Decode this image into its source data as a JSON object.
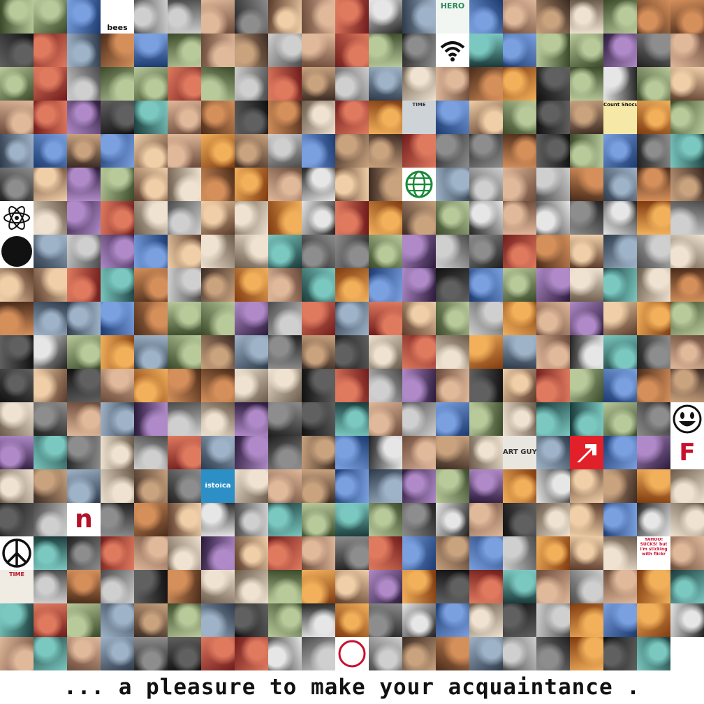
{
  "caption": "... a pleasure to make your acquaintance .",
  "tile_labels": [
    {
      "row": 0,
      "col": 3,
      "text": "bees",
      "color": "#111111",
      "bg": "#ffffff",
      "size": 11,
      "align": "bottom"
    },
    {
      "row": 0,
      "col": 13,
      "text": "HERO",
      "color": "#2a8a5a",
      "bg": "#f2f6f3",
      "size": 11,
      "align": "top"
    },
    {
      "row": 3,
      "col": 18,
      "text": "Count Shocula",
      "color": "#111111",
      "bg": "#f6e9a8",
      "size": 7,
      "align": "top"
    },
    {
      "row": 14,
      "col": 6,
      "text": "istoica",
      "color": "#ffffff",
      "bg": "#2c8fc6",
      "size": 10,
      "align": "middle"
    },
    {
      "row": 15,
      "col": 2,
      "text": "n",
      "color": "#b3132a",
      "bg": "#ffffff",
      "size": 36,
      "align": "middle"
    },
    {
      "row": 13,
      "col": 15,
      "text": "ART GUY",
      "color": "#333333",
      "bg": "#e9e6e0",
      "size": 10,
      "align": "middle"
    },
    {
      "row": 13,
      "col": 20,
      "text": "F",
      "color": "#c8102e",
      "bg": "#ffffff",
      "size": 34,
      "align": "middle"
    },
    {
      "row": 16,
      "col": 19,
      "text": "YAHOO! SUCKS! but I'm sticking with flickr",
      "color": "#c8102e",
      "bg": "#ffffff",
      "size": 6,
      "align": "wrap"
    },
    {
      "row": 17,
      "col": 0,
      "text": "TIME",
      "color": "#b3132a",
      "bg": "#f0ece4",
      "size": 8,
      "align": "top"
    },
    {
      "row": 3,
      "col": 12,
      "text": "TIME",
      "color": "#333333",
      "bg": "#cdd3d6",
      "size": 7,
      "align": "top"
    }
  ],
  "icons": [
    {
      "row": 1,
      "col": 13,
      "name": "wifi-icon"
    },
    {
      "row": 5,
      "col": 12,
      "name": "globe-icon"
    },
    {
      "row": 6,
      "col": 0,
      "name": "atom-icon"
    },
    {
      "row": 7,
      "col": 0,
      "name": "target-rings-icon"
    },
    {
      "row": 12,
      "col": 20,
      "name": "smiley-icon"
    },
    {
      "row": 16,
      "col": 0,
      "name": "peace-sign-icon"
    },
    {
      "row": 13,
      "col": 17,
      "name": "arrow-logo-icon"
    },
    {
      "row": 19,
      "col": 10,
      "name": "ring-icon"
    }
  ]
}
